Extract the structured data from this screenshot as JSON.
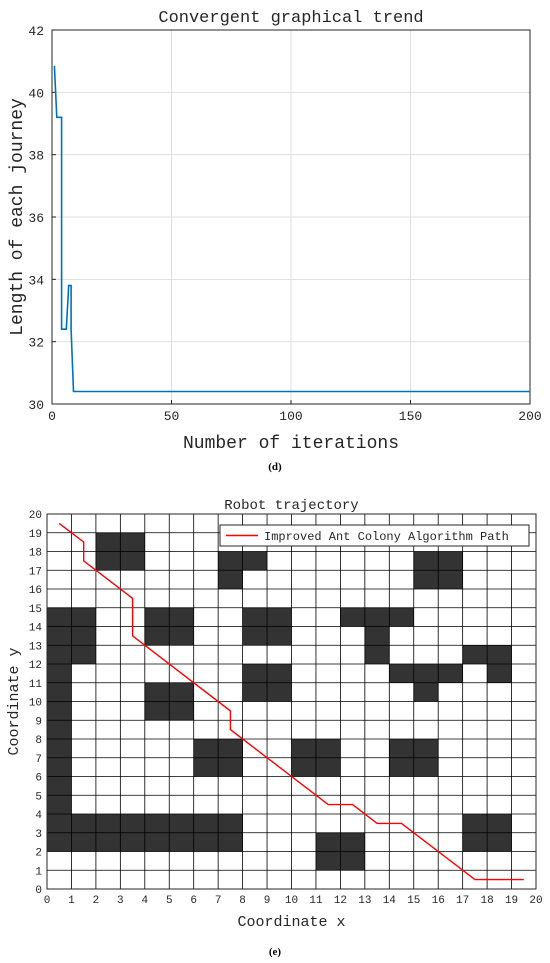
{
  "chart_data": [
    {
      "type": "line",
      "title": "Convergent graphical trend",
      "xlabel": "Number of iterations",
      "ylabel": "Length of each journey",
      "xlim": [
        0,
        200
      ],
      "ylim": [
        30,
        42
      ],
      "xticks": [
        0,
        50,
        100,
        150,
        200
      ],
      "yticks": [
        30,
        32,
        34,
        36,
        38,
        40,
        42
      ],
      "grid": true,
      "color": "#0072BD",
      "series": [
        {
          "x": [
            1,
            2,
            2,
            4,
            4,
            6,
            6,
            7,
            7,
            8,
            8,
            9,
            9,
            200
          ],
          "y": [
            40.85,
            39.2,
            39.2,
            39.2,
            32.4,
            32.4,
            32.4,
            33.8,
            33.8,
            33.8,
            32.4,
            30.4,
            30.4,
            30.4
          ]
        }
      ],
      "caption": "(d)"
    },
    {
      "type": "grid-path",
      "title": "Robot trajectory",
      "xlabel": "Coordinate x",
      "ylabel": "Coordinate y",
      "xlim": [
        0,
        20
      ],
      "ylim": [
        0,
        20
      ],
      "xticks": [
        0,
        1,
        2,
        3,
        4,
        5,
        6,
        7,
        8,
        9,
        10,
        11,
        12,
        13,
        14,
        15,
        16,
        17,
        18,
        19,
        20
      ],
      "yticks": [
        0,
        1,
        2,
        3,
        4,
        5,
        6,
        7,
        8,
        9,
        10,
        11,
        12,
        13,
        14,
        15,
        16,
        17,
        18,
        19,
        20
      ],
      "grid": true,
      "obstacle_color": "#333333",
      "path_color": "#FF0000",
      "legend_position": "top-right",
      "legend": [
        "Improved Ant Colony Algorithm Path"
      ],
      "obstacles": [
        [
          0,
          14
        ],
        [
          1,
          14
        ],
        [
          0,
          13
        ],
        [
          1,
          13
        ],
        [
          0,
          12
        ],
        [
          1,
          12
        ],
        [
          0,
          11
        ],
        [
          0,
          10
        ],
        [
          0,
          9
        ],
        [
          0,
          8
        ],
        [
          0,
          7
        ],
        [
          0,
          6
        ],
        [
          0,
          5
        ],
        [
          0,
          4
        ],
        [
          0,
          3
        ],
        [
          1,
          3
        ],
        [
          2,
          3
        ],
        [
          3,
          3
        ],
        [
          4,
          3
        ],
        [
          5,
          3
        ],
        [
          6,
          3
        ],
        [
          7,
          3
        ],
        [
          0,
          2
        ],
        [
          1,
          2
        ],
        [
          2,
          2
        ],
        [
          3,
          2
        ],
        [
          4,
          2
        ],
        [
          5,
          2
        ],
        [
          6,
          2
        ],
        [
          7,
          2
        ],
        [
          2,
          18
        ],
        [
          3,
          18
        ],
        [
          2,
          17
        ],
        [
          3,
          17
        ],
        [
          7,
          17
        ],
        [
          8,
          17
        ],
        [
          7,
          16
        ],
        [
          4,
          14
        ],
        [
          5,
          14
        ],
        [
          4,
          13
        ],
        [
          5,
          13
        ],
        [
          8,
          14
        ],
        [
          9,
          14
        ],
        [
          8,
          13
        ],
        [
          9,
          13
        ],
        [
          8,
          11
        ],
        [
          9,
          11
        ],
        [
          8,
          10
        ],
        [
          9,
          10
        ],
        [
          4,
          10
        ],
        [
          5,
          10
        ],
        [
          4,
          9
        ],
        [
          5,
          9
        ],
        [
          6,
          7
        ],
        [
          7,
          7
        ],
        [
          6,
          6
        ],
        [
          7,
          6
        ],
        [
          10,
          7
        ],
        [
          11,
          7
        ],
        [
          10,
          6
        ],
        [
          11,
          6
        ],
        [
          12,
          14
        ],
        [
          13,
          14
        ],
        [
          14,
          14
        ],
        [
          13,
          13
        ],
        [
          13,
          12
        ],
        [
          15,
          17
        ],
        [
          16,
          17
        ],
        [
          15,
          16
        ],
        [
          16,
          16
        ],
        [
          14,
          11
        ],
        [
          15,
          11
        ],
        [
          16,
          11
        ],
        [
          15,
          10
        ],
        [
          17,
          12
        ],
        [
          18,
          12
        ],
        [
          18,
          11
        ],
        [
          14,
          7
        ],
        [
          15,
          7
        ],
        [
          14,
          6
        ],
        [
          15,
          6
        ],
        [
          17,
          3
        ],
        [
          18,
          3
        ],
        [
          17,
          2
        ],
        [
          18,
          2
        ],
        [
          11,
          2
        ],
        [
          12,
          2
        ],
        [
          11,
          1
        ],
        [
          12,
          1
        ]
      ],
      "path": [
        [
          0.5,
          19.5
        ],
        [
          1.5,
          18.5
        ],
        [
          1.5,
          17.5
        ],
        [
          3.5,
          15.5
        ],
        [
          3.5,
          13.5
        ],
        [
          7.5,
          9.5
        ],
        [
          7.5,
          8.5
        ],
        [
          11.5,
          4.5
        ],
        [
          12.5,
          4.5
        ],
        [
          13.5,
          3.5
        ],
        [
          14.5,
          3.5
        ],
        [
          17.5,
          0.5
        ],
        [
          19.5,
          0.5
        ]
      ],
      "caption": "(e)"
    }
  ]
}
